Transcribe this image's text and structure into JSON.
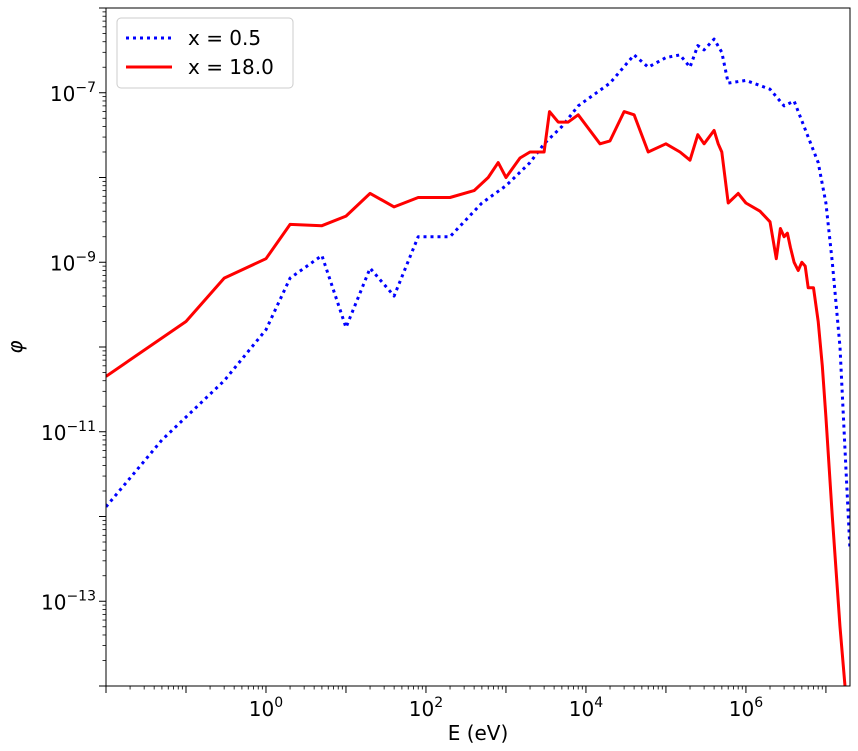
{
  "chart_data": {
    "type": "line",
    "title": "",
    "xlabel": "E (eV)",
    "ylabel": "φ",
    "xscale": "log",
    "yscale": "log",
    "xlim": [
      0.01,
      20000000
    ],
    "ylim": [
      1e-14,
      1e-06
    ],
    "grid": false,
    "legend_position": "top-left",
    "x_ticks": [
      {
        "value": 1,
        "base": "10",
        "exp": "0"
      },
      {
        "value": 100,
        "base": "10",
        "exp": "2"
      },
      {
        "value": 10000,
        "base": "10",
        "exp": "4"
      },
      {
        "value": 1000000,
        "base": "10",
        "exp": "6"
      }
    ],
    "y_ticks": [
      {
        "value": 1e-07,
        "base": "10",
        "exp": "−7"
      },
      {
        "value": 1e-09,
        "base": "10",
        "exp": "−9"
      },
      {
        "value": 1e-11,
        "base": "10",
        "exp": "−11"
      },
      {
        "value": 1e-13,
        "base": "10",
        "exp": "−13"
      }
    ],
    "series": [
      {
        "name": "x = 0.5",
        "color": "#0000ff",
        "style": "dotted",
        "points": [
          [
            0.01,
            1.3e-12
          ],
          [
            0.05,
            8e-12
          ],
          [
            0.3,
            4e-11
          ],
          [
            1.0,
            1.6e-10
          ],
          [
            2.0,
            6.5e-10
          ],
          [
            5.0,
            1.2e-09
          ],
          [
            10.0,
            1.7e-10
          ],
          [
            20.0,
            8.5e-10
          ],
          [
            40.0,
            4e-10
          ],
          [
            80.0,
            2e-09
          ],
          [
            200.0,
            2e-09
          ],
          [
            500.0,
            5e-09
          ],
          [
            1000.0,
            8e-09
          ],
          [
            2000.0,
            1.5e-08
          ],
          [
            3000.0,
            2.5e-08
          ],
          [
            5000.0,
            4e-08
          ],
          [
            8000.0,
            7e-08
          ],
          [
            20000.0,
            1.3e-07
          ],
          [
            40000.0,
            2.8e-07
          ],
          [
            60000.0,
            2e-07
          ],
          [
            100000.0,
            2.6e-07
          ],
          [
            150000.0,
            2.8e-07
          ],
          [
            200000.0,
            2e-07
          ],
          [
            250000.0,
            3.6e-07
          ],
          [
            300000.0,
            3.2e-07
          ],
          [
            400000.0,
            4.3e-07
          ],
          [
            500000.0,
            3e-07
          ],
          [
            600000.0,
            1.3e-07
          ],
          [
            1000000.0,
            1.4e-07
          ],
          [
            2000000.0,
            1.1e-07
          ],
          [
            3000000.0,
            7e-08
          ],
          [
            4000000.0,
            8e-08
          ],
          [
            6000000.0,
            3e-08
          ],
          [
            8000000.0,
            1.5e-08
          ],
          [
            10000000.0,
            5e-09
          ],
          [
            12000000.0,
            1e-09
          ],
          [
            15000000.0,
            1e-10
          ],
          [
            18000000.0,
            3e-12
          ],
          [
            20000000.0,
            4e-13
          ]
        ]
      },
      {
        "name": "x = 18.0",
        "color": "#ff0000",
        "style": "solid",
        "points": [
          [
            0.01,
            4.5e-11
          ],
          [
            0.1,
            2e-10
          ],
          [
            0.3,
            6.5e-10
          ],
          [
            1.0,
            1.1e-09
          ],
          [
            2.0,
            2.8e-09
          ],
          [
            5.0,
            2.7e-09
          ],
          [
            10.0,
            3.5e-09
          ],
          [
            20.0,
            6.5e-09
          ],
          [
            40.0,
            4.5e-09
          ],
          [
            80.0,
            5.8e-09
          ],
          [
            200.0,
            5.8e-09
          ],
          [
            400.0,
            7e-09
          ],
          [
            600.0,
            1e-08
          ],
          [
            800.0,
            1.5e-08
          ],
          [
            1000.0,
            1e-08
          ],
          [
            1500.0,
            1.7e-08
          ],
          [
            2000.0,
            2e-08
          ],
          [
            3000.0,
            2e-08
          ],
          [
            3500.0,
            6e-08
          ],
          [
            4500.0,
            4.5e-08
          ],
          [
            6000.0,
            4.5e-08
          ],
          [
            8000.0,
            5.5e-08
          ],
          [
            15000.0,
            2.5e-08
          ],
          [
            20000.0,
            2.7e-08
          ],
          [
            30000.0,
            6e-08
          ],
          [
            40000.0,
            5.5e-08
          ],
          [
            60000.0,
            2e-08
          ],
          [
            100000.0,
            2.5e-08
          ],
          [
            150000.0,
            2e-08
          ],
          [
            200000.0,
            1.6e-08
          ],
          [
            250000.0,
            3.2e-08
          ],
          [
            300000.0,
            2.5e-08
          ],
          [
            400000.0,
            3.6e-08
          ],
          [
            450000.0,
            2.5e-08
          ],
          [
            500000.0,
            2e-08
          ],
          [
            600000.0,
            5e-09
          ],
          [
            800000.0,
            6.5e-09
          ],
          [
            1000000.0,
            5e-09
          ],
          [
            1500000.0,
            4e-09
          ],
          [
            2000000.0,
            3e-09
          ],
          [
            2400000.0,
            1.1e-09
          ],
          [
            2700000.0,
            2.5e-09
          ],
          [
            3000000.0,
            2e-09
          ],
          [
            3300000.0,
            2.2e-09
          ],
          [
            3600000.0,
            1.5e-09
          ],
          [
            4000000.0,
            1e-09
          ],
          [
            4500000.0,
            8e-10
          ],
          [
            5000000.0,
            1e-09
          ],
          [
            5500000.0,
            9e-10
          ],
          [
            6000000.0,
            5e-10
          ],
          [
            7000000.0,
            5e-10
          ],
          [
            8000000.0,
            2e-10
          ],
          [
            9000000.0,
            6e-11
          ],
          [
            10000000.0,
            1.5e-11
          ],
          [
            12000000.0,
            1e-12
          ],
          [
            15000000.0,
            5e-14
          ],
          [
            20000000.0,
            2e-15
          ]
        ]
      }
    ]
  }
}
